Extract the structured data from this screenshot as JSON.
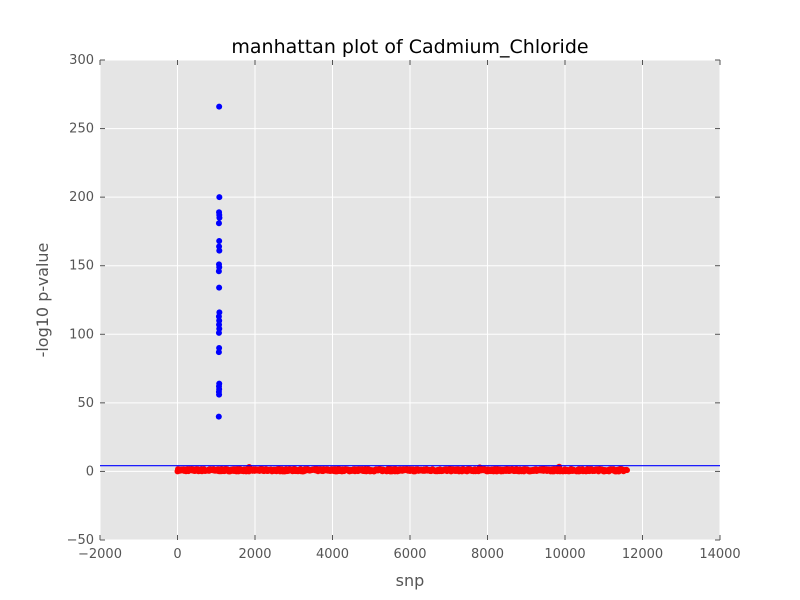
{
  "chart_data": {
    "type": "scatter",
    "title": "manhattan plot of Cadmium_Chloride",
    "xlabel": "snp",
    "ylabel": "-log10 p-value",
    "xlim": [
      -2000,
      14000
    ],
    "ylim": [
      -50,
      300
    ],
    "xticks": [
      -2000,
      0,
      2000,
      4000,
      6000,
      8000,
      10000,
      12000,
      14000
    ],
    "yticks": [
      -50,
      0,
      50,
      100,
      150,
      200,
      250,
      300
    ],
    "grid": true,
    "background_color": "#e5e5e5",
    "grid_color": "#ffffff",
    "threshold": {
      "y": 4.2,
      "color": "#0000ff"
    },
    "significant_color": "#0000ff",
    "nonsignificant_color": "#ff0000",
    "significant_points": [
      {
        "x": 1075,
        "y": 266
      },
      {
        "x": 1080,
        "y": 200
      },
      {
        "x": 1072,
        "y": 189
      },
      {
        "x": 1078,
        "y": 187
      },
      {
        "x": 1082,
        "y": 185
      },
      {
        "x": 1070,
        "y": 181
      },
      {
        "x": 1076,
        "y": 168
      },
      {
        "x": 1073,
        "y": 164
      },
      {
        "x": 1079,
        "y": 161
      },
      {
        "x": 1071,
        "y": 151
      },
      {
        "x": 1077,
        "y": 149
      },
      {
        "x": 1068,
        "y": 146
      },
      {
        "x": 1074,
        "y": 134
      },
      {
        "x": 1081,
        "y": 116
      },
      {
        "x": 1069,
        "y": 113
      },
      {
        "x": 1076,
        "y": 110
      },
      {
        "x": 1072,
        "y": 107
      },
      {
        "x": 1078,
        "y": 104
      },
      {
        "x": 1070,
        "y": 101
      },
      {
        "x": 1074,
        "y": 90
      },
      {
        "x": 1068,
        "y": 87
      },
      {
        "x": 1077,
        "y": 64
      },
      {
        "x": 1071,
        "y": 62
      },
      {
        "x": 1075,
        "y": 60
      },
      {
        "x": 1069,
        "y": 58
      },
      {
        "x": 1073,
        "y": 56
      },
      {
        "x": 1066,
        "y": 40
      }
    ],
    "background_points": {
      "x_range": [
        0,
        11600
      ],
      "y_range": [
        0,
        1.8
      ],
      "peaks": [
        {
          "x": 1850,
          "y": 3.2
        },
        {
          "x": 4150,
          "y": 2.0
        },
        {
          "x": 5450,
          "y": 2.2
        },
        {
          "x": 7800,
          "y": 3.0
        },
        {
          "x": 9850,
          "y": 3.4
        }
      ]
    }
  }
}
